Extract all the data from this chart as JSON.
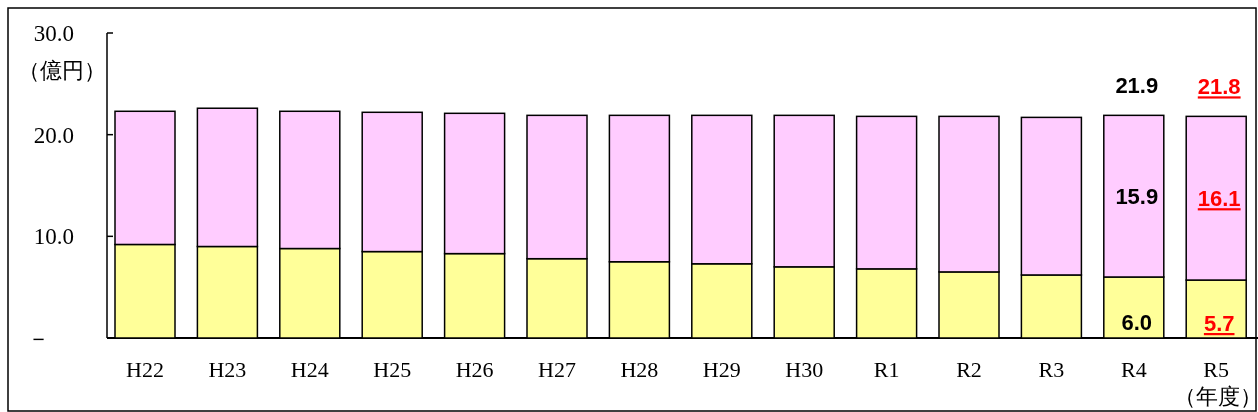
{
  "chart_data": {
    "type": "bar",
    "stacked": true,
    "ylabel": "（億円）",
    "xlabel": "（年度）",
    "categories": [
      "H22",
      "H23",
      "H24",
      "H25",
      "H26",
      "H27",
      "H28",
      "H29",
      "H30",
      "R1",
      "R2",
      "R3",
      "R4",
      "R5"
    ],
    "series": [
      {
        "color": "#ffff99",
        "values": [
          9.2,
          9.0,
          8.8,
          8.5,
          8.3,
          7.8,
          7.5,
          7.3,
          7.0,
          6.8,
          6.5,
          6.2,
          6.0,
          5.7
        ],
        "value_labels": [
          null,
          null,
          null,
          null,
          null,
          null,
          null,
          null,
          null,
          null,
          null,
          null,
          "6.0",
          "5.7"
        ]
      },
      {
        "color": "#ffccff",
        "values": [
          13.1,
          13.6,
          13.5,
          13.7,
          13.8,
          14.1,
          14.4,
          14.6,
          14.9,
          15.0,
          15.3,
          15.5,
          15.9,
          16.1
        ],
        "value_labels": [
          null,
          null,
          null,
          null,
          null,
          null,
          null,
          null,
          null,
          null,
          null,
          null,
          "15.9",
          "16.1"
        ]
      }
    ],
    "totals": [
      null,
      null,
      null,
      null,
      null,
      null,
      null,
      null,
      null,
      null,
      null,
      null,
      "21.9",
      "21.8"
    ],
    "ylim": [
      0,
      30
    ],
    "yticks": [
      {
        "value": 0,
        "label": "－"
      },
      {
        "value": 10,
        "label": "10.0"
      },
      {
        "value": 20,
        "label": "20.0"
      },
      {
        "value": 30,
        "label": "30.0"
      }
    ],
    "grid": false
  }
}
